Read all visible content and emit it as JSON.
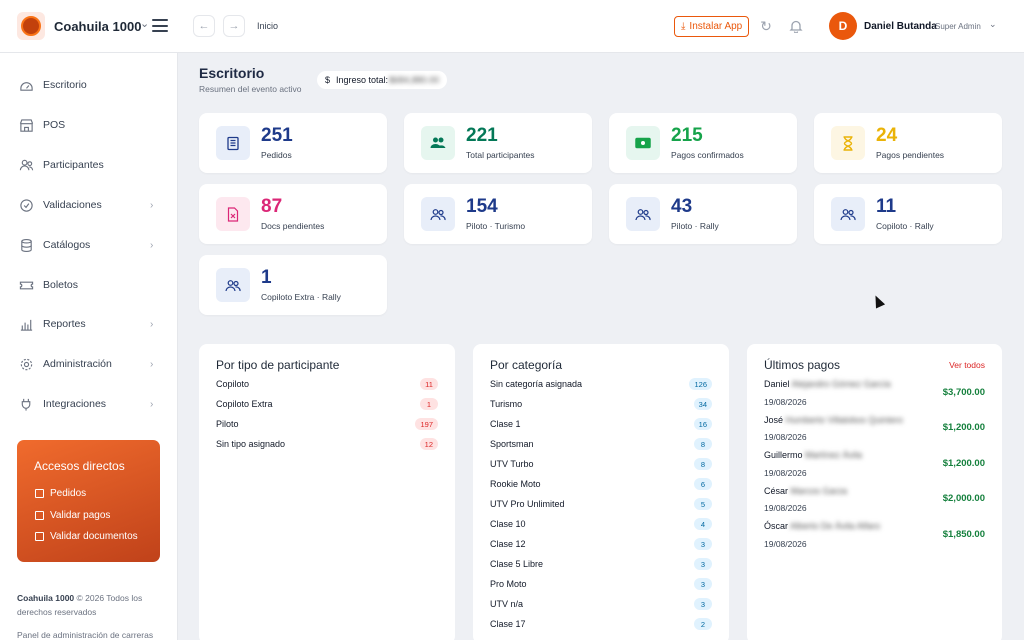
{
  "app": {
    "name": "Coahuila 1000"
  },
  "header": {
    "breadcrumb": "Inicio",
    "install_label": "Instalar App",
    "user": {
      "initial": "D",
      "name": "Daniel Butanda",
      "role": "Super Admin"
    }
  },
  "sidebar": {
    "items": [
      {
        "label": "Escritorio",
        "icon": "dashboard-icon",
        "has_children": false
      },
      {
        "label": "POS",
        "icon": "store-icon",
        "has_children": false
      },
      {
        "label": "Participantes",
        "icon": "users-icon",
        "has_children": false
      },
      {
        "label": "Validaciones",
        "icon": "check-circle-icon",
        "has_children": true
      },
      {
        "label": "Catálogos",
        "icon": "database-icon",
        "has_children": true
      },
      {
        "label": "Boletos",
        "icon": "ticket-icon",
        "has_children": false
      },
      {
        "label": "Reportes",
        "icon": "bar-chart-icon",
        "has_children": true
      },
      {
        "label": "Administración",
        "icon": "gear-icon",
        "has_children": true
      },
      {
        "label": "Integraciones",
        "icon": "plug-icon",
        "has_children": true
      }
    ],
    "shortcuts": {
      "title": "Accesos directos",
      "items": [
        "Pedidos",
        "Validar pagos",
        "Validar documentos"
      ]
    },
    "footer_brand": "Coahuila 1000",
    "footer_text": "© 2026 Todos los derechos reservados",
    "footer_text2": "Panel de administración de carreras"
  },
  "main": {
    "title": "Escritorio",
    "subtitle": "Resumen del evento activo",
    "income_label": "Ingreso total:",
    "income_prefix": "$",
    "income_value": "$684,880.00"
  },
  "stats": [
    {
      "value": "251",
      "label": "Pedidos",
      "color": "#1e3a8a",
      "icon": "document-icon",
      "bg": "#e8eef9"
    },
    {
      "value": "221",
      "label": "Total participantes",
      "color": "#047857",
      "icon": "users-icon",
      "bg": "#e6f6ef"
    },
    {
      "value": "215",
      "label": "Pagos confirmados",
      "color": "#16a34a",
      "icon": "cash-icon",
      "bg": "#e6f6ef"
    },
    {
      "value": "24",
      "label": "Pagos pendientes",
      "color": "#eab308",
      "icon": "hourglass-icon",
      "bg": "#fdf6e3"
    },
    {
      "value": "87",
      "label": "Docs pendientes",
      "color": "#db2777",
      "icon": "file-x-icon",
      "bg": "#fde8ef"
    },
    {
      "value": "154",
      "label": "Piloto · Turismo",
      "color": "#1e3a8a",
      "icon": "users-icon",
      "bg": "#e8eef9"
    },
    {
      "value": "43",
      "label": "Piloto · Rally",
      "color": "#1e3a8a",
      "icon": "users-icon",
      "bg": "#e8eef9"
    },
    {
      "value": "11",
      "label": "Copiloto · Rally",
      "color": "#1e3a8a",
      "icon": "users-icon",
      "bg": "#e8eef9"
    },
    {
      "value": "1",
      "label": "Copiloto Extra · Rally",
      "color": "#1e3a8a",
      "icon": "users-icon",
      "bg": "#e8eef9"
    }
  ],
  "by_type": {
    "title": "Por tipo de participante",
    "rows": [
      {
        "label": "Copiloto",
        "count": "11"
      },
      {
        "label": "Copiloto Extra",
        "count": "1"
      },
      {
        "label": "Piloto",
        "count": "197"
      },
      {
        "label": "Sin tipo asignado",
        "count": "12"
      }
    ]
  },
  "by_category": {
    "title": "Por categoría",
    "rows": [
      {
        "label": "Sin categoría asignada",
        "count": "126"
      },
      {
        "label": "Turismo",
        "count": "34"
      },
      {
        "label": "Clase 1",
        "count": "16"
      },
      {
        "label": "Sportsman",
        "count": "8"
      },
      {
        "label": "UTV Turbo",
        "count": "8"
      },
      {
        "label": "Rookie Moto",
        "count": "6"
      },
      {
        "label": "UTV Pro Unlimited",
        "count": "5"
      },
      {
        "label": "Clase 10",
        "count": "4"
      },
      {
        "label": "Clase 12",
        "count": "3"
      },
      {
        "label": "Clase 5 Libre",
        "count": "3"
      },
      {
        "label": "Pro Moto",
        "count": "3"
      },
      {
        "label": "UTV n/a",
        "count": "3"
      },
      {
        "label": "Clase 17",
        "count": "2"
      }
    ]
  },
  "payments": {
    "title": "Últimos pagos",
    "see_all": "Ver todos",
    "rows": [
      {
        "first": "Daniel",
        "rest": "Alejandro Gómez García",
        "date": "19/08/2026",
        "amount": "$3,700.00"
      },
      {
        "first": "José",
        "rest": "Humberto Villalobos Quintero",
        "date": "19/08/2026",
        "amount": "$1,200.00"
      },
      {
        "first": "Guillermo",
        "rest": "Martínez Ávila",
        "date": "19/08/2026",
        "amount": "$1,200.00"
      },
      {
        "first": "César",
        "rest": "Marcos Garza",
        "date": "19/08/2026",
        "amount": "$2,000.00"
      },
      {
        "first": "Óscar",
        "rest": "Alberto De Ávila Alfaro",
        "date": "19/08/2026",
        "amount": "$1,850.00"
      }
    ]
  }
}
